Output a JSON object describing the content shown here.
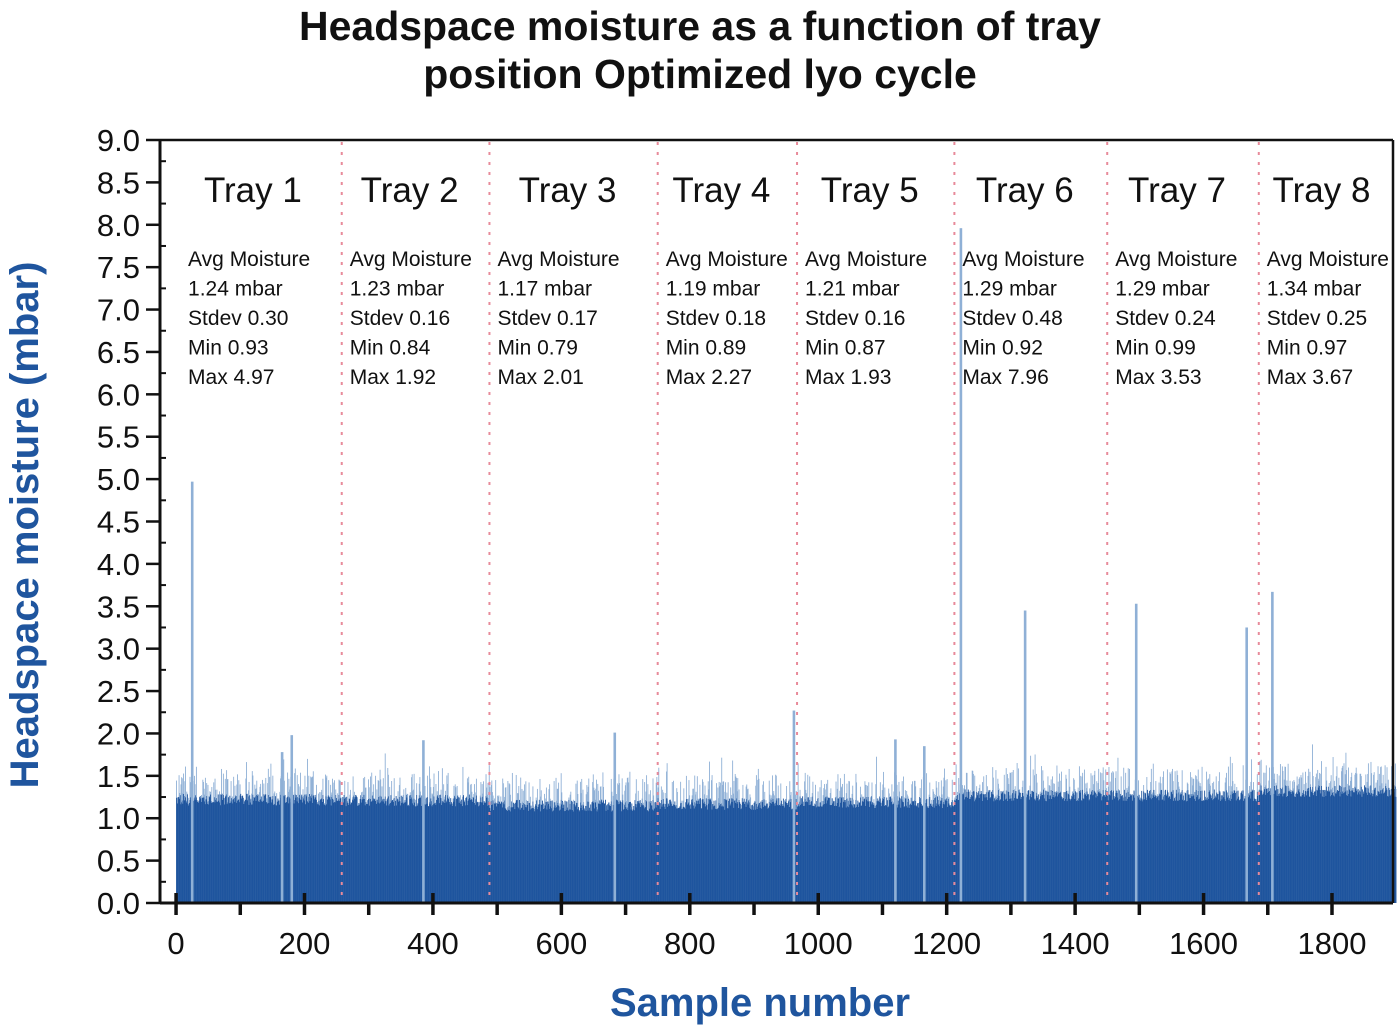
{
  "chart_data": {
    "type": "bar",
    "title_lines": [
      "Headspace moisture as a function of tray",
      "position Optimized lyo cycle"
    ],
    "xlabel": "Sample number",
    "ylabel": "Headspace moisture (mbar)",
    "xlim": [
      -25,
      1895
    ],
    "ylim": [
      0,
      9.0
    ],
    "x_ticks": [
      0,
      200,
      400,
      600,
      800,
      1000,
      1200,
      1400,
      1600,
      1800
    ],
    "x_tick_labels": [
      "0",
      "200",
      "400",
      "600",
      "800",
      "1000",
      "1200",
      "1400",
      "1600",
      "1800"
    ],
    "y_ticks": [
      0,
      0.5,
      1.0,
      1.5,
      2.0,
      2.5,
      3.0,
      3.5,
      4.0,
      4.5,
      5.0,
      5.5,
      6.0,
      6.5,
      7.0,
      7.5,
      8.0,
      8.5,
      9.0
    ],
    "y_tick_labels": [
      "0.0",
      "0.5",
      "1.0",
      "1.5",
      "2.0",
      "2.5",
      "3.0",
      "3.5",
      "4.0",
      "4.5",
      "5.0",
      "5.5",
      "6.0",
      "6.5",
      "7.0",
      "7.5",
      "8.0",
      "8.5",
      "9.0"
    ],
    "grid": false,
    "bar_color": "#1f559e",
    "spike_color": "#8fb0d6",
    "divider_color": "#e88a9a",
    "samples": {
      "x_start": 0,
      "x_end": 1900,
      "count": 1900
    },
    "tray_boundaries": [
      258,
      488,
      750,
      967,
      1212,
      1450,
      1686
    ],
    "trays": [
      {
        "name": "Tray 1",
        "range": [
          0,
          258
        ],
        "avg": 1.24,
        "stdev": 0.3,
        "min": 0.93,
        "max": 4.97,
        "stats": [
          "Avg Moisture",
          "1.24 mbar",
          "Stdev 0.30",
          "Min 0.93",
          "Max 4.97"
        ]
      },
      {
        "name": "Tray 2",
        "range": [
          258,
          488
        ],
        "avg": 1.23,
        "stdev": 0.16,
        "min": 0.84,
        "max": 1.92,
        "stats": [
          "Avg Moisture",
          "1.23 mbar",
          "Stdev 0.16",
          "Min 0.84",
          "Max 1.92"
        ]
      },
      {
        "name": "Tray 3",
        "range": [
          488,
          750
        ],
        "avg": 1.17,
        "stdev": 0.17,
        "min": 0.79,
        "max": 2.01,
        "stats": [
          "Avg Moisture",
          "1.17 mbar",
          "Stdev 0.17",
          "Min 0.79",
          "Max 2.01"
        ]
      },
      {
        "name": "Tray 4",
        "range": [
          750,
          967
        ],
        "avg": 1.19,
        "stdev": 0.18,
        "min": 0.89,
        "max": 2.27,
        "stats": [
          "Avg Moisture",
          "1.19 mbar",
          "Stdev 0.18",
          "Min 0.89",
          "Max 2.27"
        ]
      },
      {
        "name": "Tray 5",
        "range": [
          967,
          1212
        ],
        "avg": 1.21,
        "stdev": 0.16,
        "min": 0.87,
        "max": 1.93,
        "stats": [
          "Avg Moisture",
          "1.21 mbar",
          "Stdev 0.16",
          "Min 0.87",
          "Max 1.93"
        ]
      },
      {
        "name": "Tray 6",
        "range": [
          1212,
          1450
        ],
        "avg": 1.29,
        "stdev": 0.48,
        "min": 0.92,
        "max": 7.96,
        "stats": [
          "Avg Moisture",
          "1.29 mbar",
          "Stdev 0.48",
          "Min 0.92",
          "Max 7.96"
        ]
      },
      {
        "name": "Tray 7",
        "range": [
          1450,
          1686
        ],
        "avg": 1.29,
        "stdev": 0.24,
        "min": 0.99,
        "max": 3.53,
        "stats": [
          "Avg Moisture",
          "1.29 mbar",
          "Stdev 0.24",
          "Min 0.99",
          "Max 3.53"
        ]
      },
      {
        "name": "Tray 8",
        "range": [
          1686,
          1900
        ],
        "avg": 1.34,
        "stdev": 0.25,
        "min": 0.97,
        "max": 3.67,
        "stats": [
          "Avg Moisture",
          "1.34 mbar",
          "Stdev 0.25",
          "Min 0.97",
          "Max 3.67"
        ]
      }
    ],
    "notable_samples": [
      {
        "x": 25,
        "y": 4.97
      },
      {
        "x": 165,
        "y": 1.78
      },
      {
        "x": 180,
        "y": 1.98
      },
      {
        "x": 385,
        "y": 1.92
      },
      {
        "x": 683,
        "y": 2.01
      },
      {
        "x": 962,
        "y": 2.27
      },
      {
        "x": 1120,
        "y": 1.93
      },
      {
        "x": 1165,
        "y": 1.85
      },
      {
        "x": 1222,
        "y": 7.96
      },
      {
        "x": 1322,
        "y": 3.45
      },
      {
        "x": 1495,
        "y": 3.53
      },
      {
        "x": 1667,
        "y": 3.25
      },
      {
        "x": 1707,
        "y": 3.67
      }
    ]
  }
}
